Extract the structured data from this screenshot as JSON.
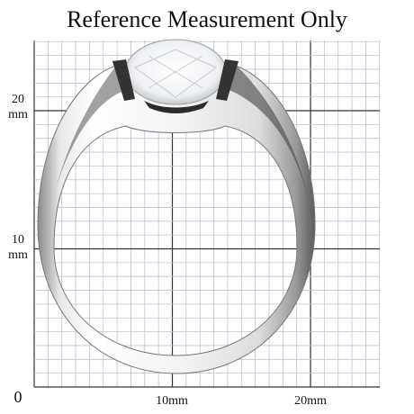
{
  "title": "Reference Measurement Only",
  "axis_labels": {
    "left": [
      {
        "number": "20",
        "unit": "mm"
      },
      {
        "number": "10",
        "unit": "mm"
      }
    ],
    "origin": "0",
    "bottom": [
      "10mm",
      "20mm"
    ]
  }
}
